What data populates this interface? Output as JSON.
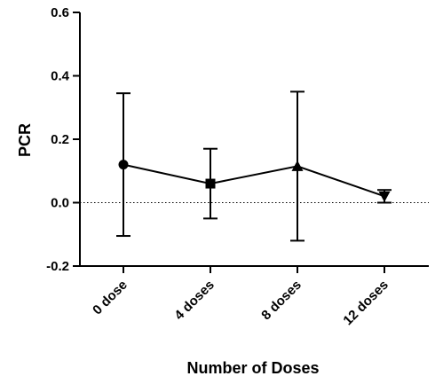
{
  "chart_data": {
    "type": "line",
    "title": "",
    "xlabel": "Number of Doses",
    "ylabel": "PCR",
    "categories": [
      "0 dose",
      "4 doses",
      "8 doses",
      "12 doses"
    ],
    "ylim": [
      -0.2,
      0.6
    ],
    "yticks": [
      -0.2,
      0.0,
      0.2,
      0.4,
      0.6
    ],
    "ytick_labels": [
      "-0.2",
      "0.0",
      "0.2",
      "0.4",
      "0.6"
    ],
    "series": [
      {
        "values": [
          0.12,
          0.06,
          0.115,
          0.02
        ],
        "lower": [
          -0.105,
          -0.05,
          -0.12,
          0.0
        ],
        "upper": [
          0.345,
          0.17,
          0.35,
          0.04
        ],
        "markers": [
          "circle",
          "square",
          "triangle-up",
          "triangle-down"
        ],
        "color": "#000000"
      }
    ],
    "reference_line": {
      "y": 0.0,
      "style": "dotted"
    },
    "grid": false,
    "legend": "none"
  }
}
